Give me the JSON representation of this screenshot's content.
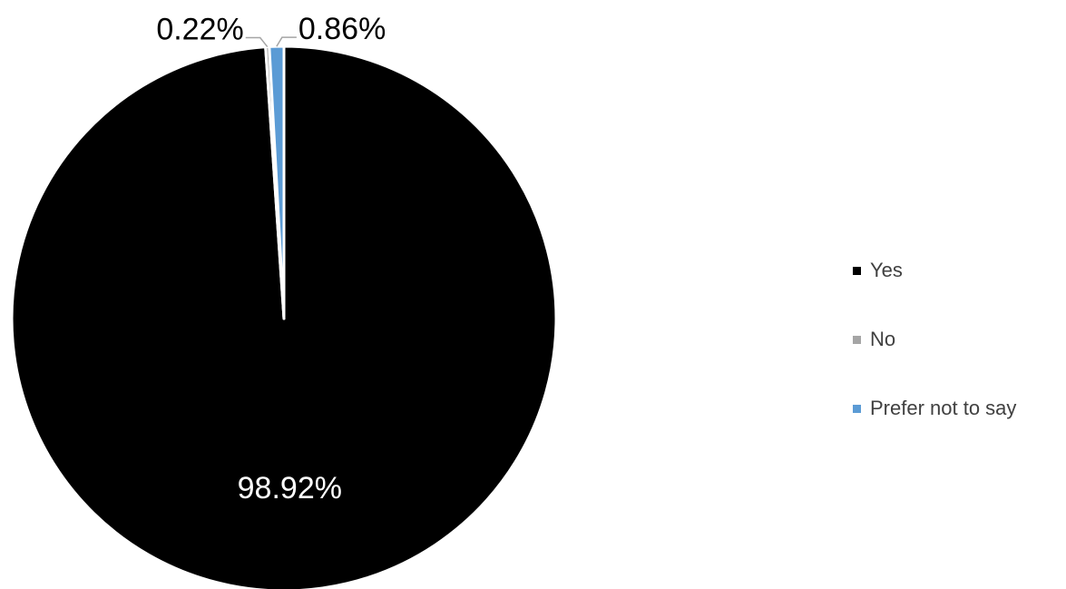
{
  "chart_data": {
    "type": "pie",
    "title": "",
    "categories": [
      "Yes",
      "No",
      "Prefer not to say"
    ],
    "values": [
      98.92,
      0.22,
      0.86
    ],
    "value_labels": [
      "98.92%",
      "0.22%",
      "0.86%"
    ],
    "colors": [
      "#000000",
      "#a5a5a5",
      "#5b9bd5"
    ],
    "legend_position": "right"
  }
}
